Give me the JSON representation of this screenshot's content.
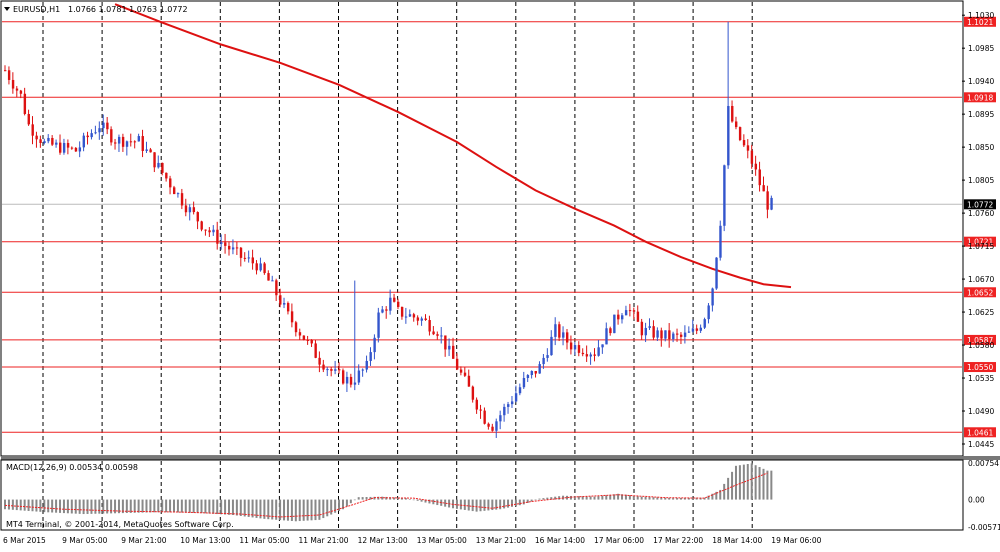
{
  "chart_header": {
    "symbol_label": "EURUSD,H1",
    "ohlc_text": "1.0766 1.0781 1.0763 1.0772"
  },
  "indicator_header": {
    "label": "MACD(12,26,9) 0.00534 0.00598"
  },
  "copyright": "MT4 Terminal, © 2001-2014, MetaQuotes Software Corp.",
  "colors": {
    "bull": "#3355cc",
    "bear": "#dd1111",
    "ma": "#dd1111",
    "hline": "#ee2222",
    "grid": "#000000",
    "histogram": "#888888",
    "signal": "#ee2222"
  },
  "chart_data": [
    {
      "type": "candlestick",
      "symbol": "EURUSD",
      "timeframe": "H1",
      "price_axis": {
        "ticks": [
          "1.1030",
          "1.0985",
          "1.0940",
          "1.0895",
          "1.0850",
          "1.0805",
          "1.0760",
          "1.0715",
          "1.0670",
          "1.0625",
          "1.0580",
          "1.0535",
          "1.0490",
          "1.0445"
        ],
        "tick_values": [
          1.103,
          1.0985,
          1.094,
          1.0895,
          1.085,
          1.0805,
          1.076,
          1.0715,
          1.067,
          1.0625,
          1.058,
          1.0535,
          1.049,
          1.0445
        ],
        "range": [
          1.043,
          1.1048
        ],
        "current_price": "1.0772",
        "current_value": 1.0772
      },
      "time_axis": {
        "labels": [
          "6 Mar 2015",
          "9 Mar 05:00",
          "9 Mar 21:00",
          "10 Mar 13:00",
          "11 Mar 05:00",
          "11 Mar 21:00",
          "12 Mar 13:00",
          "13 Mar 05:00",
          "13 Mar 21:00",
          "16 Mar 14:00",
          "17 Mar 06:00",
          "17 Mar 22:00",
          "18 Mar 14:00",
          "19 Mar 06:00"
        ]
      },
      "horizontal_levels": [
        {
          "label": "1.1021",
          "value": 1.1021
        },
        {
          "label": "1.0918",
          "value": 1.0918
        },
        {
          "label": "1.0721",
          "value": 1.0721
        },
        {
          "label": "1.0652",
          "value": 1.0652
        },
        {
          "label": "1.0587",
          "value": 1.0587
        },
        {
          "label": "1.0550",
          "value": 1.055
        },
        {
          "label": "1.0461",
          "value": 1.0461
        }
      ],
      "moving_average": [
        [
          28,
          1.1045
        ],
        [
          40,
          1.102
        ],
        [
          55,
          1.099
        ],
        [
          70,
          1.0965
        ],
        [
          85,
          1.0935
        ],
        [
          100,
          1.0898
        ],
        [
          115,
          1.0857
        ],
        [
          125,
          1.0823
        ],
        [
          135,
          1.0791
        ],
        [
          145,
          1.0766
        ],
        [
          155,
          1.0743
        ],
        [
          163,
          1.0721
        ],
        [
          172,
          1.07
        ],
        [
          180,
          1.0684
        ],
        [
          187,
          1.0672
        ],
        [
          193,
          1.0663
        ],
        [
          200,
          1.0659
        ]
      ],
      "price_path": [
        [
          0,
          1.0955
        ],
        [
          4,
          1.092
        ],
        [
          6,
          1.088
        ],
        [
          10,
          1.0855
        ],
        [
          14,
          1.085
        ],
        [
          18,
          1.0845
        ],
        [
          22,
          1.087
        ],
        [
          24,
          1.088
        ],
        [
          28,
          1.086
        ],
        [
          34,
          1.0858
        ],
        [
          38,
          1.083
        ],
        [
          42,
          1.08
        ],
        [
          46,
          1.077
        ],
        [
          50,
          1.0745
        ],
        [
          55,
          1.072
        ],
        [
          60,
          1.07
        ],
        [
          64,
          1.069
        ],
        [
          68,
          1.066
        ],
        [
          72,
          1.062
        ],
        [
          76,
          1.059
        ],
        [
          80,
          1.056
        ],
        [
          84,
          1.054
        ],
        [
          88,
          1.053
        ],
        [
          92,
          1.055
        ],
        [
          95,
          1.062
        ],
        [
          98,
          1.064
        ],
        [
          100,
          1.0625
        ],
        [
          106,
          1.0615
        ],
        [
          110,
          1.06
        ],
        [
          114,
          1.056
        ],
        [
          118,
          1.052
        ],
        [
          122,
          1.048
        ],
        [
          124,
          1.047
        ],
        [
          128,
          1.05
        ],
        [
          132,
          1.053
        ],
        [
          136,
          1.055
        ],
        [
          140,
          1.06
        ],
        [
          144,
          1.058
        ],
        [
          150,
          1.057
        ],
        [
          154,
          1.0605
        ],
        [
          158,
          1.0635
        ],
        [
          162,
          1.06
        ],
        [
          168,
          1.0592
        ],
        [
          172,
          1.059
        ],
        [
          176,
          1.06
        ],
        [
          178,
          1.062
        ],
        [
          180,
          1.066
        ],
        [
          182,
          1.075
        ],
        [
          184,
          1.09
        ],
        [
          186,
          1.087
        ],
        [
          188,
          1.085
        ],
        [
          190,
          1.083
        ],
        [
          192,
          1.08
        ],
        [
          194,
          1.0772
        ]
      ],
      "spikes": [
        {
          "x": 184,
          "high": 1.1021,
          "low": 1.085
        },
        {
          "x": 89,
          "high": 1.0668,
          "low": 1.059
        }
      ]
    },
    {
      "type": "bar",
      "name": "MACD(12,26,9)",
      "value_axis": {
        "ticks": [
          "0.00754",
          "0.00",
          "-0.00571"
        ],
        "tick_values": [
          0.00754,
          0.0,
          -0.00571
        ],
        "range": [
          -0.0061,
          0.008
        ]
      },
      "histogram_path": [
        [
          0,
          -0.002
        ],
        [
          10,
          -0.0026
        ],
        [
          20,
          -0.003
        ],
        [
          30,
          -0.0028
        ],
        [
          40,
          -0.0026
        ],
        [
          50,
          -0.0028
        ],
        [
          58,
          -0.0032
        ],
        [
          66,
          -0.004
        ],
        [
          74,
          -0.0045
        ],
        [
          80,
          -0.0042
        ],
        [
          86,
          -0.002
        ],
        [
          90,
          0.0005
        ],
        [
          96,
          0.0006
        ],
        [
          102,
          0.0003
        ],
        [
          108,
          -0.0008
        ],
        [
          114,
          -0.0018
        ],
        [
          120,
          -0.0025
        ],
        [
          126,
          -0.002
        ],
        [
          132,
          -0.001
        ],
        [
          136,
          0.0002
        ],
        [
          142,
          0.0008
        ],
        [
          150,
          0.0006
        ],
        [
          156,
          0.0012
        ],
        [
          162,
          0.0006
        ],
        [
          170,
          0.0003
        ],
        [
          178,
          0.0004
        ],
        [
          182,
          0.002
        ],
        [
          186,
          0.007
        ],
        [
          190,
          0.0075
        ],
        [
          194,
          0.006
        ]
      ],
      "signal_path": [
        [
          0,
          -0.0012
        ],
        [
          15,
          -0.002
        ],
        [
          30,
          -0.0024
        ],
        [
          45,
          -0.0026
        ],
        [
          60,
          -0.003
        ],
        [
          70,
          -0.0036
        ],
        [
          80,
          -0.0032
        ],
        [
          88,
          -0.0012
        ],
        [
          94,
          0.0004
        ],
        [
          104,
          0.0003
        ],
        [
          114,
          -0.001
        ],
        [
          124,
          -0.0018
        ],
        [
          134,
          -0.0004
        ],
        [
          144,
          0.0005
        ],
        [
          156,
          0.001
        ],
        [
          168,
          0.0004
        ],
        [
          178,
          0.0003
        ],
        [
          186,
          0.003
        ],
        [
          194,
          0.0055
        ]
      ]
    }
  ]
}
